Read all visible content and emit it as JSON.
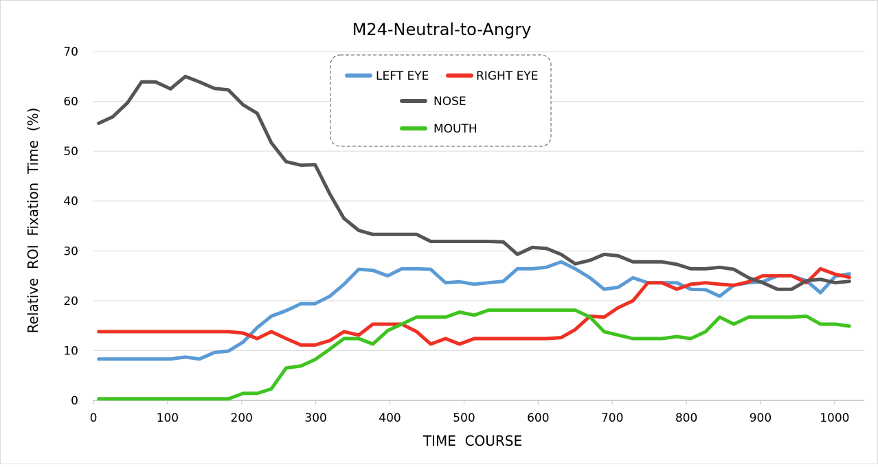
{
  "chart_data": {
    "type": "line",
    "title": "M24-Neutral-to-Angry",
    "xlabel": "TIME  COURSE",
    "ylabel": "Relative  ROI  Fixation  Time  (%)",
    "xlim": [
      0,
      1040
    ],
    "ylim": [
      0,
      70
    ],
    "xticks": [
      0,
      100,
      200,
      300,
      400,
      500,
      600,
      700,
      800,
      900,
      1000
    ],
    "yticks": [
      0,
      10,
      20,
      30,
      40,
      50,
      60,
      70
    ],
    "grid": "horizontal",
    "legend_position": "top-center",
    "x": [
      7,
      26,
      46,
      65,
      84,
      104,
      124,
      143,
      163,
      182,
      202,
      221,
      240,
      260,
      280,
      299,
      319,
      338,
      358,
      377,
      397,
      416,
      436,
      455,
      475,
      494,
      514,
      533,
      553,
      572,
      592,
      611,
      631,
      650,
      670,
      689,
      708,
      728,
      748,
      767,
      787,
      806,
      826,
      845,
      864,
      884,
      903,
      923,
      942,
      962,
      981,
      1001,
      1020
    ],
    "series": [
      {
        "name": "LEFT EYE",
        "color": "#5b9bd5",
        "values": [
          8.3,
          8.3,
          8.3,
          8.3,
          8.3,
          8.3,
          8.7,
          8.3,
          9.6,
          9.9,
          11.7,
          14.6,
          16.9,
          18.0,
          19.4,
          19.4,
          20.9,
          23.3,
          26.3,
          26.1,
          25.0,
          26.4,
          26.4,
          26.3,
          23.6,
          23.8,
          23.3,
          23.6,
          23.9,
          26.4,
          26.4,
          26.7,
          27.8,
          26.4,
          24.6,
          22.3,
          22.7,
          24.6,
          23.6,
          23.6,
          23.6,
          22.3,
          22.2,
          20.9,
          23.1,
          23.6,
          23.8,
          25.0,
          25.0,
          24.0,
          21.6,
          24.9,
          25.4
        ]
      },
      {
        "name": "RIGHT EYE",
        "color": "#ee3124",
        "values": [
          13.8,
          13.8,
          13.8,
          13.8,
          13.8,
          13.8,
          13.8,
          13.8,
          13.8,
          13.8,
          13.5,
          12.4,
          13.8,
          12.4,
          11.1,
          11.1,
          12.0,
          13.8,
          13.1,
          15.3,
          15.3,
          15.3,
          13.8,
          11.3,
          12.4,
          11.3,
          12.4,
          12.4,
          12.4,
          12.4,
          12.4,
          12.4,
          12.6,
          14.2,
          16.9,
          16.7,
          18.6,
          20.0,
          23.6,
          23.6,
          22.3,
          23.3,
          23.6,
          23.3,
          23.1,
          23.8,
          25.0,
          25.0,
          25.0,
          23.6,
          26.4,
          25.3,
          24.7
        ]
      },
      {
        "name": "NOSE",
        "color": "#555555",
        "values": [
          55.6,
          56.9,
          59.7,
          63.9,
          63.9,
          62.5,
          65.0,
          63.9,
          62.6,
          62.3,
          59.3,
          57.6,
          51.7,
          47.9,
          47.2,
          47.3,
          41.4,
          36.5,
          34.1,
          33.3,
          33.3,
          33.3,
          33.3,
          31.9,
          31.9,
          31.9,
          31.9,
          31.9,
          31.8,
          29.3,
          30.7,
          30.5,
          29.3,
          27.4,
          28.1,
          29.3,
          29.0,
          27.8,
          27.8,
          27.8,
          27.3,
          26.4,
          26.4,
          26.7,
          26.3,
          24.6,
          23.6,
          22.3,
          22.3,
          24.0,
          24.3,
          23.6,
          23.9
        ]
      },
      {
        "name": "MOUTH",
        "color": "#3fc31f",
        "values": [
          0.3,
          0.3,
          0.3,
          0.3,
          0.3,
          0.3,
          0.3,
          0.3,
          0.3,
          0.3,
          1.4,
          1.4,
          2.3,
          6.5,
          6.9,
          8.2,
          10.3,
          12.4,
          12.4,
          11.3,
          14.0,
          15.3,
          16.7,
          16.7,
          16.7,
          17.7,
          17.1,
          18.1,
          18.1,
          18.1,
          18.1,
          18.1,
          18.1,
          18.1,
          16.7,
          13.8,
          13.1,
          12.4,
          12.4,
          12.4,
          12.8,
          12.4,
          13.8,
          16.7,
          15.3,
          16.7,
          16.7,
          16.7,
          16.7,
          16.9,
          15.3,
          15.3,
          14.9
        ]
      }
    ]
  }
}
